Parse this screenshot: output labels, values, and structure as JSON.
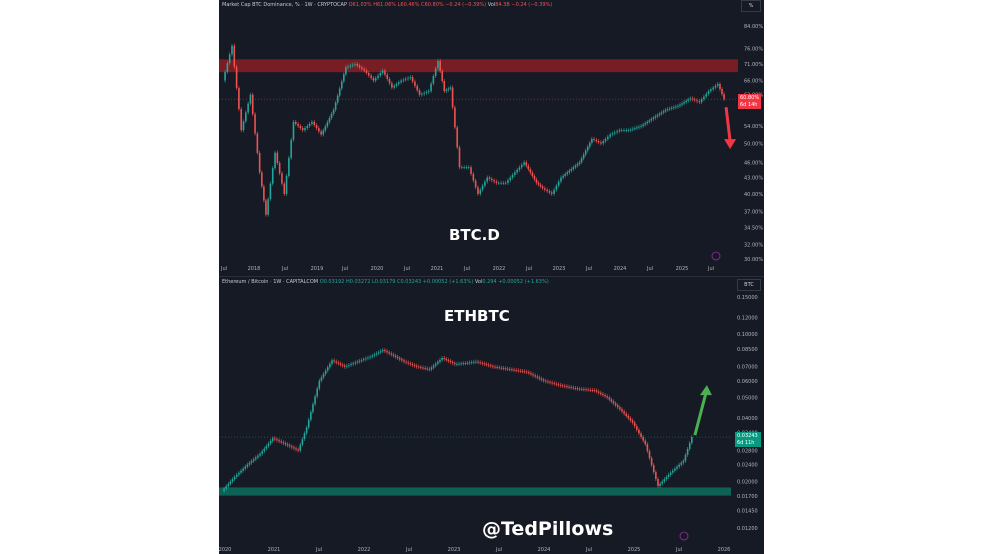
{
  "top": {
    "header": {
      "symbol": "Market Cap BTC Dominance, % · 1W · CRYPTOCAP",
      "o": "O61.03%",
      "h": "H61.06%",
      "l": "L60.46%",
      "c": "C60.80%",
      "chg": "−0.24 (−0.39%)",
      "vol_label": "Vol",
      "vol": "84.3B",
      "vol_chg": "−0.24 (−0.39%)"
    },
    "scale_btn": "%",
    "overlay_title": "BTC.D",
    "last_price": "60.80%",
    "countdown": "6d 14h",
    "colors": {
      "accent": "#f23645",
      "up": "#26a69a",
      "down": "#ef5350",
      "zone": "#8b1e25"
    }
  },
  "bottom": {
    "header": {
      "symbol": "Ethereum / Bitcoin · 1W · CAPITALCOM",
      "o": "O0.03192",
      "h": "H0.03272",
      "l": "L0.03179",
      "c": "C0.03243",
      "chg": "+0.00052 (+1.63%)",
      "vol_label": "Vol",
      "vol": "0.294",
      "vol_chg": "+0.00052 (+1.63%)"
    },
    "scale_btn": "BTC",
    "overlay_title": "ETHBTC",
    "last_price": "0.03243",
    "countdown": "6d 11h",
    "colors": {
      "accent": "#089981",
      "zone": "#0d6e5e"
    }
  },
  "watermark": "@TedPillows",
  "chart_data": [
    {
      "type": "line",
      "title": "Market Cap BTC Dominance, % · 1W · CRYPTOCAP",
      "scale": "log",
      "y_ticks": [
        "84.00%",
        "76.00%",
        "71.00%",
        "66.00%",
        "62.00%",
        "54.00%",
        "50.00%",
        "46.00%",
        "43.00%",
        "40.00%",
        "37.00%",
        "34.50%",
        "32.00%",
        "30.00%"
      ],
      "x_ticks": [
        "Jul",
        "2018",
        "Jul",
        "2019",
        "Jul",
        "2020",
        "Jul",
        "2021",
        "Jul",
        "2022",
        "Jul",
        "2023",
        "Jul",
        "2024",
        "Jul",
        "2025",
        "Jul"
      ],
      "x": [
        2017.4,
        2017.55,
        2017.7,
        2017.85,
        2018.0,
        2018.1,
        2018.25,
        2018.4,
        2018.55,
        2018.7,
        2018.85,
        2019.0,
        2019.2,
        2019.4,
        2019.55,
        2019.7,
        2019.85,
        2020.0,
        2020.15,
        2020.3,
        2020.45,
        2020.6,
        2020.75,
        2020.9,
        2021.0,
        2021.1,
        2021.25,
        2021.4,
        2021.55,
        2021.7,
        2021.85,
        2022.0,
        2022.15,
        2022.3,
        2022.5,
        2022.6,
        2022.75,
        2022.9,
        2023.0,
        2023.2,
        2023.4,
        2023.55,
        2023.7,
        2023.85,
        2024.0,
        2024.2,
        2024.4,
        2024.6,
        2024.8,
        2025.0,
        2025.15,
        2025.3,
        2025.45,
        2025.55
      ],
      "values": [
        66,
        77,
        53,
        62,
        44,
        36.5,
        48,
        40,
        55,
        53,
        55,
        52,
        58,
        70,
        71,
        69,
        66,
        69,
        64,
        66,
        67,
        62,
        63,
        72,
        63,
        64,
        45,
        45,
        40,
        43,
        42,
        42,
        44,
        46,
        42,
        41,
        40,
        43,
        44,
        46,
        51,
        50,
        52,
        53,
        53,
        54,
        56,
        58,
        59,
        61,
        60,
        63,
        65,
        60.8
      ],
      "zones": [
        {
          "from": 68.5,
          "to": 72.5,
          "label": ""
        }
      ],
      "annotation": {
        "type": "arrow",
        "direction": "down"
      }
    },
    {
      "type": "line",
      "title": "Ethereum / Bitcoin · 1W · CAPITALCOM",
      "scale": "log",
      "y_ticks": [
        "0.15000",
        "0.12000",
        "0.10000",
        "0.08500",
        "0.07000",
        "0.06000",
        "0.05000",
        "0.04000",
        "0.03400",
        "0.02800",
        "0.02400",
        "0.02000",
        "0.01700",
        "0.01450",
        "0.01200"
      ],
      "x_ticks": [
        "2020",
        "2021",
        "Jul",
        "2022",
        "Jul",
        "2023",
        "Jul",
        "2024",
        "Jul",
        "2025",
        "Jul",
        "2026"
      ],
      "x": [
        2020.0,
        2020.15,
        2020.3,
        2020.45,
        2020.6,
        2020.75,
        2020.9,
        2021.0,
        2021.15,
        2021.3,
        2021.45,
        2021.6,
        2021.75,
        2021.9,
        2022.0,
        2022.15,
        2022.3,
        2022.45,
        2022.6,
        2022.75,
        2022.9,
        2023.0,
        2023.2,
        2023.4,
        2023.6,
        2023.8,
        2024.0,
        2024.2,
        2024.4,
        2024.55,
        2024.7,
        2024.85,
        2025.0,
        2025.15,
        2025.3,
        2025.45,
        2025.55
      ],
      "values": [
        0.018,
        0.021,
        0.024,
        0.027,
        0.032,
        0.03,
        0.028,
        0.036,
        0.06,
        0.075,
        0.07,
        0.074,
        0.078,
        0.084,
        0.08,
        0.074,
        0.07,
        0.068,
        0.077,
        0.072,
        0.073,
        0.074,
        0.07,
        0.068,
        0.066,
        0.06,
        0.057,
        0.055,
        0.054,
        0.05,
        0.044,
        0.038,
        0.03,
        0.019,
        0.022,
        0.025,
        0.03243
      ],
      "zones": [
        {
          "from": 0.0171,
          "to": 0.0187,
          "label": ""
        }
      ],
      "annotation": {
        "type": "arrow",
        "direction": "up"
      }
    }
  ]
}
